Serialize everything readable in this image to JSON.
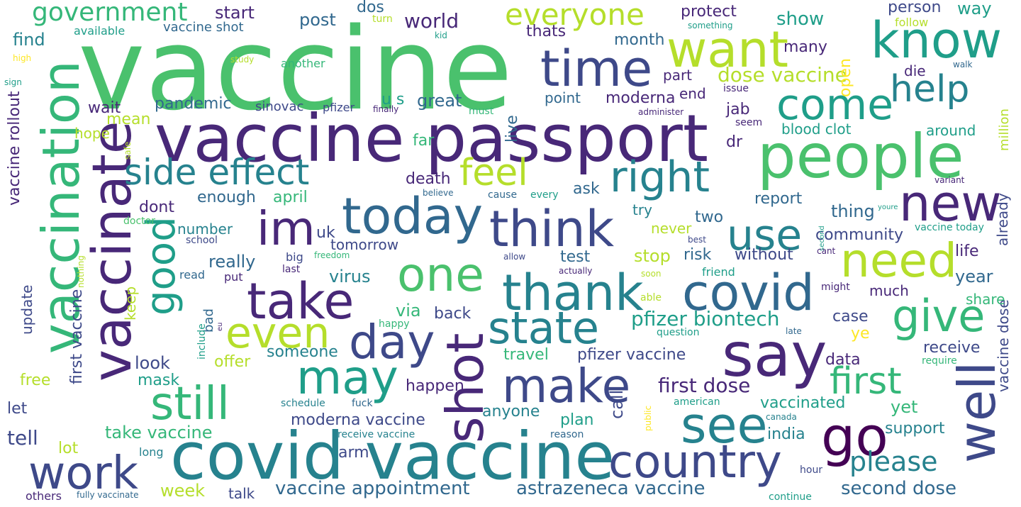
{
  "palette": {
    "background": "#ffffff",
    "lime": "#b5de2b",
    "yellow": "#fde725",
    "green": "#4ac16d",
    "mint": "#35b779",
    "teal": "#1f9e89",
    "cyan": "#26828e",
    "blue": "#31688e",
    "indigo": "#3e4989",
    "purple": "#482878",
    "deep": "#440154"
  },
  "words": [
    {
      "text": "vaccine"
    },
    {
      "text": "vaccine passport"
    },
    {
      "text": "covid vaccine"
    },
    {
      "text": "people"
    },
    {
      "text": "say"
    },
    {
      "text": "vaccinate"
    },
    {
      "text": "vaccination"
    },
    {
      "text": "know"
    },
    {
      "text": "want"
    },
    {
      "text": "time"
    },
    {
      "text": "think"
    },
    {
      "text": "today"
    },
    {
      "text": "thank"
    },
    {
      "text": "take"
    },
    {
      "text": "covid"
    },
    {
      "text": "new"
    },
    {
      "text": "right"
    },
    {
      "text": "come"
    },
    {
      "text": "help"
    },
    {
      "text": "need"
    },
    {
      "text": "use"
    },
    {
      "text": "give"
    },
    {
      "text": "go"
    },
    {
      "text": "well"
    },
    {
      "text": "see"
    },
    {
      "text": "make"
    },
    {
      "text": "may"
    },
    {
      "text": "day"
    },
    {
      "text": "state"
    },
    {
      "text": "shot"
    },
    {
      "text": "still"
    },
    {
      "text": "even"
    },
    {
      "text": "good"
    },
    {
      "text": "one"
    },
    {
      "text": "im"
    },
    {
      "text": "work"
    },
    {
      "text": "country"
    },
    {
      "text": "side effect"
    },
    {
      "text": "feel"
    },
    {
      "text": "first"
    },
    {
      "text": "everyone"
    },
    {
      "text": "government"
    },
    {
      "text": "please"
    },
    {
      "text": "first dose"
    },
    {
      "text": "pfizer biontech"
    },
    {
      "text": "dose vaccine"
    },
    {
      "text": "vaccine appointment"
    },
    {
      "text": "astrazeneca vaccine"
    },
    {
      "text": "second dose"
    },
    {
      "text": "moderna vaccine"
    },
    {
      "text": "pfizer vaccine"
    },
    {
      "text": "take vaccine"
    },
    {
      "text": "vaccine rollout"
    },
    {
      "text": "first vaccine"
    },
    {
      "text": "vaccine dose"
    },
    {
      "text": "blood clot"
    },
    {
      "text": "vaccinated"
    },
    {
      "text": "vaccine shot"
    },
    {
      "text": "vaccine today"
    },
    {
      "text": "fully vaccinate"
    },
    {
      "text": "receive vaccine"
    },
    {
      "text": "moderna"
    },
    {
      "text": "start"
    },
    {
      "text": "protect"
    },
    {
      "text": "post"
    },
    {
      "text": "dos"
    },
    {
      "text": "world"
    },
    {
      "text": "show"
    },
    {
      "text": "person"
    },
    {
      "text": "way"
    },
    {
      "text": "thats"
    },
    {
      "text": "month"
    },
    {
      "text": "many"
    },
    {
      "text": "open"
    },
    {
      "text": "find"
    },
    {
      "text": "available"
    },
    {
      "text": "turn"
    },
    {
      "text": "kid"
    },
    {
      "text": "something"
    },
    {
      "text": "follow"
    },
    {
      "text": "high"
    },
    {
      "text": "study"
    },
    {
      "text": "another"
    },
    {
      "text": "sign"
    },
    {
      "text": "part"
    },
    {
      "text": "end"
    },
    {
      "text": "issue"
    },
    {
      "text": "die"
    },
    {
      "text": "walk"
    },
    {
      "text": "million"
    },
    {
      "text": "live"
    },
    {
      "text": "point"
    },
    {
      "text": "pandemic"
    },
    {
      "text": "sinovac"
    },
    {
      "text": "pfizer"
    },
    {
      "text": "finally"
    },
    {
      "text": "must"
    },
    {
      "text": "u s"
    },
    {
      "text": "great"
    },
    {
      "text": "wait"
    },
    {
      "text": "mean"
    },
    {
      "text": "hope"
    },
    {
      "text": "safe"
    },
    {
      "text": "far"
    },
    {
      "text": "jab"
    },
    {
      "text": "administer"
    },
    {
      "text": "seem"
    },
    {
      "text": "dr"
    },
    {
      "text": "around"
    },
    {
      "text": "already"
    },
    {
      "text": "death"
    },
    {
      "text": "ask"
    },
    {
      "text": "enough"
    },
    {
      "text": "april"
    },
    {
      "text": "believe"
    },
    {
      "text": "cause"
    },
    {
      "text": "every"
    },
    {
      "text": "variant"
    },
    {
      "text": "dont"
    },
    {
      "text": "report"
    },
    {
      "text": "try"
    },
    {
      "text": "thing"
    },
    {
      "text": "doctor"
    },
    {
      "text": "number"
    },
    {
      "text": "uk"
    },
    {
      "text": "two"
    },
    {
      "text": "never"
    },
    {
      "text": "community"
    },
    {
      "text": "nothing"
    },
    {
      "text": "school"
    },
    {
      "text": "tomorrow"
    },
    {
      "text": "youre"
    },
    {
      "text": "second"
    },
    {
      "text": "best"
    },
    {
      "text": "really"
    },
    {
      "text": "big"
    },
    {
      "text": "freedom"
    },
    {
      "text": "allow"
    },
    {
      "text": "test"
    },
    {
      "text": "stop"
    },
    {
      "text": "risk"
    },
    {
      "text": "without"
    },
    {
      "text": "cant"
    },
    {
      "text": "life"
    },
    {
      "text": "read"
    },
    {
      "text": "put"
    },
    {
      "text": "last"
    },
    {
      "text": "actually"
    },
    {
      "text": "soon"
    },
    {
      "text": "friend"
    },
    {
      "text": "year"
    },
    {
      "text": "virus"
    },
    {
      "text": "might"
    },
    {
      "text": "much"
    },
    {
      "text": "update"
    },
    {
      "text": "keep"
    },
    {
      "text": "able"
    },
    {
      "text": "share"
    },
    {
      "text": "bad"
    },
    {
      "text": "eu"
    },
    {
      "text": "via"
    },
    {
      "text": "back"
    },
    {
      "text": "case"
    },
    {
      "text": "include"
    },
    {
      "text": "happy"
    },
    {
      "text": "question"
    },
    {
      "text": "late"
    },
    {
      "text": "ye"
    },
    {
      "text": "someone"
    },
    {
      "text": "travel"
    },
    {
      "text": "receive"
    },
    {
      "text": "look"
    },
    {
      "text": "offer"
    },
    {
      "text": "data"
    },
    {
      "text": "require"
    },
    {
      "text": "free"
    },
    {
      "text": "mask"
    },
    {
      "text": "happen"
    },
    {
      "text": "call"
    },
    {
      "text": "let"
    },
    {
      "text": "schedule"
    },
    {
      "text": "fuck"
    },
    {
      "text": "american"
    },
    {
      "text": "yet"
    },
    {
      "text": "anyone"
    },
    {
      "text": "plan"
    },
    {
      "text": "public"
    },
    {
      "text": "canada"
    },
    {
      "text": "tell"
    },
    {
      "text": "support"
    },
    {
      "text": "reason"
    },
    {
      "text": "india"
    },
    {
      "text": "lot"
    },
    {
      "text": "arm"
    },
    {
      "text": "long"
    },
    {
      "text": "hour"
    },
    {
      "text": "week"
    },
    {
      "text": "talk"
    },
    {
      "text": "others"
    },
    {
      "text": "continue"
    }
  ]
}
